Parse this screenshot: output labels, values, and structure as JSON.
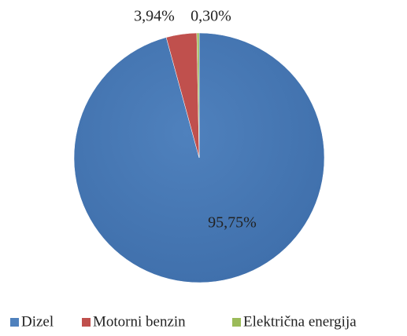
{
  "chart_data": {
    "type": "pie",
    "categories": [
      "Dizel",
      "Motorni benzin",
      "Električna energija"
    ],
    "values": [
      95.75,
      3.94,
      0.3
    ],
    "value_labels": [
      "95,75%",
      "3,94%",
      "0,30%"
    ],
    "colors": [
      "#4f81bd",
      "#c0504d",
      "#9bbb59"
    ],
    "legend": "bottom"
  }
}
